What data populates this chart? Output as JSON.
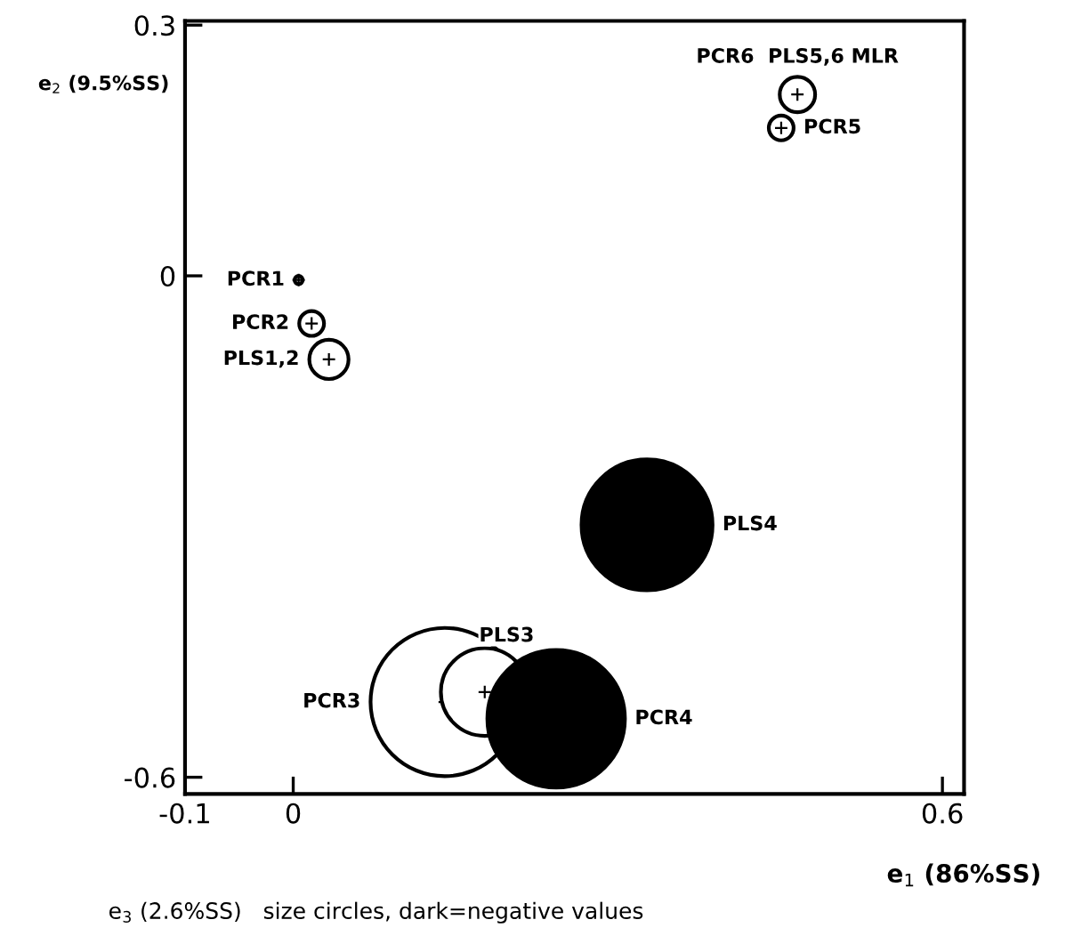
{
  "chart_data": {
    "type": "bubble",
    "xlabel": "e$_{1}$ (86%SS)",
    "ylabel": "e$_{2}$ (9.5%SS)",
    "xlim": [
      -0.1,
      0.62
    ],
    "ylim": [
      -0.62,
      0.305
    ],
    "xticks": [
      -0.1,
      0,
      0.6
    ],
    "yticks": [
      0.3,
      0,
      -0.6
    ],
    "series": [
      {
        "name": "PCR1",
        "color": "#ffffff",
        "x": [
          0.005
        ],
        "values": [
          -0.005
        ],
        "sizes": [
          0.003
        ]
      },
      {
        "name": "PCR2",
        "color": "#ffffff",
        "x": [
          0.017
        ],
        "values": [
          -0.057
        ],
        "sizes": [
          0.028
        ]
      },
      {
        "name": "PLS1,2",
        "color": "#ffffff",
        "x": [
          0.033
        ],
        "values": [
          -0.1
        ],
        "sizes": [
          0.07
        ]
      },
      {
        "name": "PCR6  PLS5,6 MLR",
        "color": "#ffffff",
        "x": [
          0.466
        ],
        "values": [
          0.217
        ],
        "sizes": [
          0.057
        ]
      },
      {
        "name": "PCR5",
        "color": "#ffffff",
        "x": [
          0.451
        ],
        "values": [
          0.177
        ],
        "sizes": [
          0.028
        ]
      },
      {
        "name": "PCR3",
        "color": "#ffffff",
        "x": [
          0.14
        ],
        "values": [
          -0.51
        ],
        "sizes": [
          1
        ]
      },
      {
        "name": "PLS3",
        "color": "#ffffff",
        "x": [
          0.177
        ],
        "values": [
          -0.498
        ],
        "sizes": [
          0.35
        ]
      },
      {
        "name": "PLS4",
        "color": "#000000",
        "x": [
          0.327
        ],
        "values": [
          -0.298
        ],
        "sizes": [
          0.78
        ]
      },
      {
        "name": "PCR4",
        "color": "#000000",
        "x": [
          0.243
        ],
        "values": [
          -0.53
        ],
        "sizes": [
          0.86
        ]
      }
    ],
    "annotations": [
      "e$_{3}$ (2.6%SS)   size circles, dark=negative values"
    ]
  }
}
